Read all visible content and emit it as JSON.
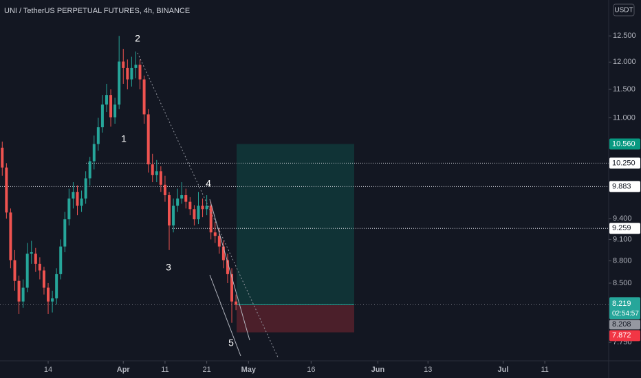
{
  "chart_data": {
    "type": "candlestick",
    "title": "UNI / TetherUS PERPETUAL FUTURES, 4h, BINANCE",
    "currency": "USDT",
    "x": [
      2,
      3,
      4,
      5,
      6,
      7,
      8,
      9,
      10,
      11,
      12,
      13,
      14,
      15,
      16,
      17,
      18,
      19,
      20,
      21,
      22,
      23,
      24,
      25,
      26,
      27,
      28,
      29,
      30,
      31,
      32,
      33,
      34,
      35,
      36,
      37,
      38,
      39,
      40,
      41,
      42,
      43,
      44,
      45,
      46,
      47,
      48,
      49,
      50,
      51,
      52,
      53,
      54,
      55,
      56,
      57,
      58
    ],
    "open": [
      10.5,
      10.18,
      9.49,
      8.81,
      8.53,
      8.26,
      8.44,
      8.9,
      8.9,
      8.76,
      8.67,
      8.44,
      8.26,
      8.3,
      8.62,
      9.0,
      9.39,
      9.7,
      9.8,
      9.59,
      9.7,
      10.01,
      10.28,
      10.56,
      10.84,
      11.23,
      11.4,
      11.01,
      11.23,
      12.01,
      11.89,
      11.68,
      11.89,
      11.95,
      11.68,
      11.06,
      10.23,
      10.06,
      10.12,
      9.91,
      9.75,
      9.3,
      9.59,
      9.7,
      9.75,
      9.65,
      9.54,
      9.39,
      9.59,
      9.54,
      9.59,
      9.2,
      9.15,
      9.0,
      8.81,
      8.62,
      8.26
    ],
    "high": [
      10.6,
      10.25,
      9.55,
      8.95,
      8.6,
      8.55,
      9.05,
      9.08,
      8.98,
      8.85,
      8.72,
      8.5,
      8.4,
      8.7,
      9.1,
      9.5,
      9.85,
      9.95,
      9.9,
      9.82,
      10.12,
      10.35,
      10.7,
      11.0,
      11.4,
      11.6,
      11.5,
      11.35,
      12.5,
      12.25,
      12.05,
      12.1,
      12.2,
      12.05,
      11.75,
      11.15,
      10.4,
      10.3,
      10.2,
      10.05,
      9.8,
      9.7,
      9.85,
      9.95,
      9.85,
      9.72,
      9.6,
      9.8,
      9.7,
      9.75,
      9.65,
      9.35,
      9.25,
      9.08,
      8.9,
      8.7,
      8.35
    ],
    "low": [
      10.05,
      9.4,
      8.7,
      8.4,
      8.1,
      8.18,
      8.38,
      8.76,
      8.65,
      8.55,
      8.35,
      8.1,
      8.12,
      8.22,
      8.55,
      8.92,
      9.3,
      9.55,
      9.45,
      9.5,
      9.62,
      9.9,
      10.15,
      10.45,
      10.75,
      11.1,
      10.85,
      10.9,
      11.15,
      11.6,
      11.5,
      11.55,
      11.7,
      11.5,
      10.9,
      10.1,
      9.95,
      9.95,
      9.8,
      9.65,
      8.95,
      9.2,
      9.5,
      9.62,
      9.55,
      9.45,
      9.3,
      9.32,
      9.42,
      9.45,
      9.1,
      9.05,
      8.9,
      8.7,
      8.5,
      7.99,
      8.15
    ],
    "close": [
      10.18,
      9.49,
      8.81,
      8.53,
      8.26,
      8.44,
      8.9,
      8.92,
      8.76,
      8.67,
      8.44,
      8.26,
      8.3,
      8.62,
      9.0,
      9.39,
      9.7,
      9.8,
      9.59,
      9.7,
      10.01,
      10.28,
      10.56,
      10.84,
      11.23,
      11.4,
      11.01,
      11.23,
      12.01,
      11.89,
      11.68,
      11.89,
      11.95,
      11.68,
      11.06,
      10.23,
      10.06,
      10.12,
      9.91,
      9.75,
      9.3,
      9.59,
      9.7,
      9.75,
      9.65,
      9.54,
      9.39,
      9.59,
      9.54,
      9.59,
      9.2,
      9.15,
      9.0,
      8.81,
      8.62,
      8.26,
      8.219
    ],
    "up_color": "#26a69a",
    "down_color": "#ef5350",
    "xlim": [
      1.46,
      147.3
    ],
    "xticks": [
      {
        "value": 13,
        "label": "14"
      },
      {
        "value": 31,
        "label": "Apr"
      },
      {
        "value": 41,
        "label": "11"
      },
      {
        "value": 51,
        "label": "21"
      },
      {
        "value": 61,
        "label": "May"
      },
      {
        "value": 76,
        "label": "16"
      },
      {
        "value": 92,
        "label": "Jun"
      },
      {
        "value": 104,
        "label": "13"
      },
      {
        "value": 122,
        "label": "Jul"
      },
      {
        "value": 132,
        "label": "11"
      }
    ],
    "ylim": [
      7.53,
      13.22
    ],
    "log_scale": true,
    "grid": false,
    "yticks": [
      {
        "value": 7.75,
        "label": "7.750"
      },
      {
        "value": 8.5,
        "label": "8.500"
      },
      {
        "value": 8.8,
        "label": "8.800"
      },
      {
        "value": 9.1,
        "label": "9.100"
      },
      {
        "value": 9.4,
        "label": "9.400"
      },
      {
        "value": 11,
        "label": "11.000"
      },
      {
        "value": 11.5,
        "label": "11.500"
      },
      {
        "value": 12,
        "label": "12.000"
      },
      {
        "value": 12.5,
        "label": "12.500"
      }
    ],
    "levels": [
      {
        "value": 10.25,
        "label": "10.250"
      },
      {
        "value": 9.883,
        "label": "9.883"
      },
      {
        "value": 9.259,
        "label": "9.259"
      }
    ],
    "last_price": {
      "value": 8.219,
      "label": "8.219",
      "countdown": "02:54:57"
    },
    "other_price": {
      "value": 8.208,
      "label": "8.208"
    },
    "position": {
      "target": {
        "value": 10.56,
        "label": "10.560"
      },
      "stop": {
        "value": 7.872,
        "label": "7.872"
      }
    },
    "wave_labels": [
      "1",
      "2",
      "3",
      "4",
      "5"
    ]
  }
}
